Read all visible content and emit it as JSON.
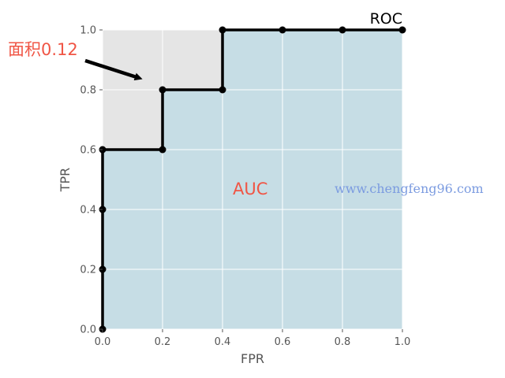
{
  "chart_data": {
    "type": "area",
    "title": "ROC",
    "xlabel": "FPR",
    "ylabel": "TPR",
    "xlim": [
      0,
      1
    ],
    "ylim": [
      0,
      1
    ],
    "grid": true,
    "x_ticks": [
      "0.0",
      "0.2",
      "0.4",
      "0.6",
      "0.8",
      "1.0"
    ],
    "y_ticks": [
      "0.0",
      "0.2",
      "0.4",
      "0.6",
      "0.8",
      "1.0"
    ],
    "series": [
      {
        "x": [
          0.0,
          0.0,
          0.0,
          0.0,
          0.2,
          0.2,
          0.4,
          0.4,
          0.6,
          0.8,
          1.0
        ],
        "y": [
          0.0,
          0.2,
          0.4,
          0.6,
          0.6,
          0.8,
          0.8,
          1.0,
          1.0,
          1.0,
          1.0
        ],
        "color": "#000000"
      }
    ],
    "annotations": [
      {
        "text": "面积0.12",
        "color": "#f05545"
      },
      {
        "text": "AUC",
        "color": "#f05545"
      }
    ],
    "watermark": {
      "text": "www.chengfeng96.com",
      "color": "#7b9be0"
    },
    "colors": {
      "area_fill": "#c6dde5",
      "background": "#e5e5e5",
      "grid": "#ffffff"
    }
  }
}
